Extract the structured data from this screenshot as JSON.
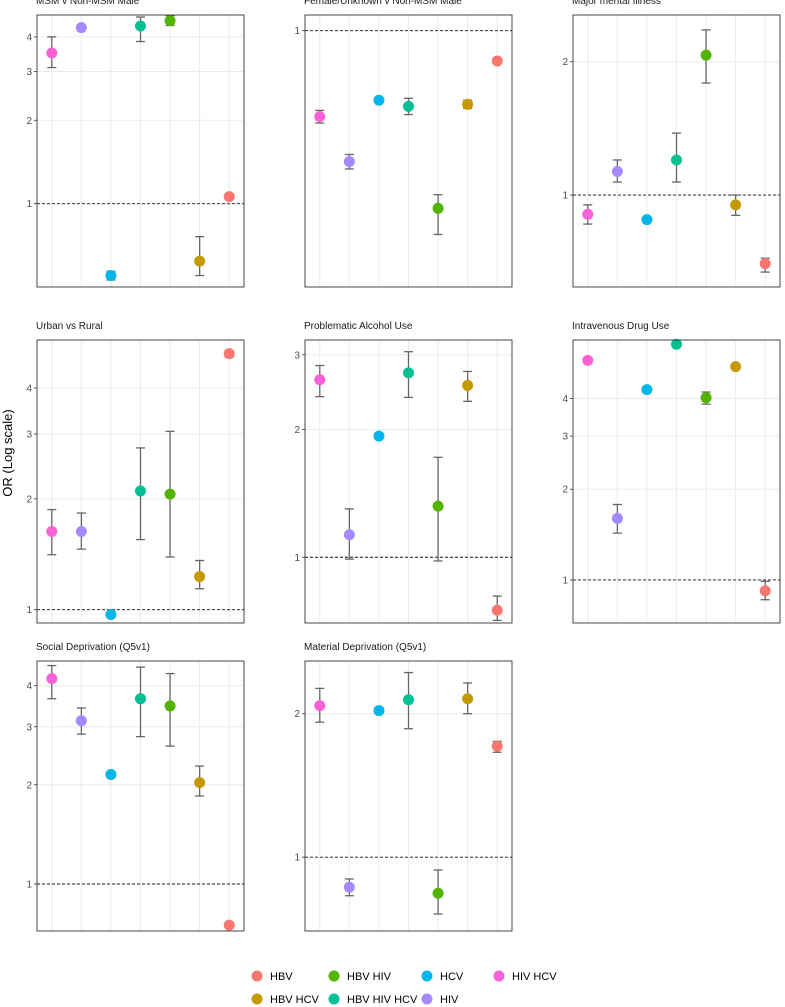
{
  "chart_data": {
    "type": "scatter",
    "y_axis_label": "OR (Log scale)",
    "series_order": [
      "HIV HCV",
      "HIV",
      "HCV",
      "HBV HIV HCV",
      "HBV HIV",
      "HBV HCV",
      "HBV"
    ],
    "colors": {
      "HBV": "#F8766D",
      "HBV HCV": "#C49A00",
      "HBV HIV": "#53B400",
      "HBV HIV HCV": "#00C094",
      "HCV": "#00B6EB",
      "HIV": "#A58AFF",
      "HIV HCV": "#FB61D7"
    },
    "legend": [
      [
        "HBV",
        "HBV HIV",
        "HCV",
        "HIV HCV"
      ],
      [
        "HBV HCV",
        "HBV HIV HCV",
        "HIV"
      ]
    ],
    "panels": [
      {
        "title": "MSM v Non-MSM Male",
        "ylim": [
          0.5,
          4.8
        ],
        "ticks": [
          1,
          2,
          3,
          4
        ],
        "points": [
          {
            "series": "HIV HCV",
            "or": 3.5,
            "lo": 3.1,
            "hi": 4.0
          },
          {
            "series": "HIV",
            "or": 4.32,
            "lo": 4.22,
            "hi": 4.42
          },
          {
            "series": "HCV",
            "or": 0.55,
            "lo": 0.53,
            "hi": 0.57
          },
          {
            "series": "HBV HIV HCV",
            "or": 4.38,
            "lo": 3.85,
            "hi": 4.72
          },
          {
            "series": "HBV HIV",
            "or": 4.58,
            "lo": 4.4,
            "hi": 4.78
          },
          {
            "series": "HBV HCV",
            "or": 0.62,
            "lo": 0.55,
            "hi": 0.76
          },
          {
            "series": "HBV",
            "or": 1.06,
            "lo": 1.04,
            "hi": 1.08
          }
        ]
      },
      {
        "title": "Female/Unknown v Non-MSM Male",
        "ylim": [
          0.45,
          1.05
        ],
        "ticks": [
          1
        ],
        "points": [
          {
            "series": "HIV HCV",
            "or": 0.765,
            "lo": 0.75,
            "hi": 0.78
          },
          {
            "series": "HIV",
            "or": 0.665,
            "lo": 0.65,
            "hi": 0.68
          },
          {
            "series": "HCV",
            "or": 0.805,
            "lo": 0.8,
            "hi": 0.81
          },
          {
            "series": "HBV HIV HCV",
            "or": 0.79,
            "lo": 0.77,
            "hi": 0.81
          },
          {
            "series": "HBV HIV",
            "or": 0.575,
            "lo": 0.53,
            "hi": 0.6
          },
          {
            "series": "HBV HCV",
            "or": 0.795,
            "lo": 0.785,
            "hi": 0.805
          },
          {
            "series": "HBV",
            "or": 0.91,
            "lo": 0.905,
            "hi": 0.915
          }
        ]
      },
      {
        "title": "Major mental Illness",
        "ylim": [
          0.62,
          2.55
        ],
        "ticks": [
          1,
          2
        ],
        "points": [
          {
            "series": "HIV HCV",
            "or": 0.905,
            "lo": 0.86,
            "hi": 0.95
          },
          {
            "series": "HIV",
            "or": 1.13,
            "lo": 1.07,
            "hi": 1.2
          },
          {
            "series": "HCV",
            "or": 0.88,
            "lo": 0.87,
            "hi": 0.89
          },
          {
            "series": "HBV HIV HCV",
            "or": 1.2,
            "lo": 1.07,
            "hi": 1.38
          },
          {
            "series": "HBV HIV",
            "or": 2.07,
            "lo": 1.79,
            "hi": 2.36
          },
          {
            "series": "HBV HCV",
            "or": 0.95,
            "lo": 0.9,
            "hi": 1.0
          },
          {
            "series": "HBV",
            "or": 0.7,
            "lo": 0.67,
            "hi": 0.72
          }
        ]
      },
      {
        "title": "Urban vs Rural",
        "ylim": [
          0.92,
          5.4
        ],
        "ticks": [
          1,
          2,
          3,
          4
        ],
        "points": [
          {
            "series": "HIV HCV",
            "or": 1.63,
            "lo": 1.41,
            "hi": 1.87
          },
          {
            "series": "HIV",
            "or": 1.63,
            "lo": 1.46,
            "hi": 1.83
          },
          {
            "series": "HCV",
            "or": 0.97,
            "lo": 0.96,
            "hi": 0.98
          },
          {
            "series": "HBV HIV HCV",
            "or": 2.1,
            "lo": 1.55,
            "hi": 2.75
          },
          {
            "series": "HBV HIV",
            "or": 2.06,
            "lo": 1.39,
            "hi": 3.05
          },
          {
            "series": "HBV HCV",
            "or": 1.23,
            "lo": 1.14,
            "hi": 1.36
          },
          {
            "series": "HBV",
            "or": 4.96,
            "lo": 4.85,
            "hi": 5.05
          }
        ]
      },
      {
        "title": "Problematic Alcohol Use",
        "ylim": [
          0.7,
          3.25
        ],
        "ticks": [
          1,
          2,
          3
        ],
        "points": [
          {
            "series": "HIV HCV",
            "or": 2.62,
            "lo": 2.39,
            "hi": 2.83
          },
          {
            "series": "HIV",
            "or": 1.13,
            "lo": 0.99,
            "hi": 1.3
          },
          {
            "series": "HCV",
            "or": 1.93,
            "lo": 1.91,
            "hi": 1.95
          },
          {
            "series": "HBV HIV HCV",
            "or": 2.72,
            "lo": 2.38,
            "hi": 3.05
          },
          {
            "series": "HBV HIV",
            "or": 1.32,
            "lo": 0.98,
            "hi": 1.72
          },
          {
            "series": "HBV HCV",
            "or": 2.54,
            "lo": 2.33,
            "hi": 2.74
          },
          {
            "series": "HBV",
            "or": 0.75,
            "lo": 0.71,
            "hi": 0.81
          }
        ]
      },
      {
        "title": "Intravenous Drug Use",
        "ylim": [
          0.72,
          6.25
        ],
        "ticks": [
          1,
          2,
          3,
          4
        ],
        "points": [
          {
            "series": "HIV HCV",
            "or": 5.35,
            "lo": 5.31,
            "hi": 5.39
          },
          {
            "series": "HIV",
            "or": 1.6,
            "lo": 1.43,
            "hi": 1.78
          },
          {
            "series": "HCV",
            "or": 4.28,
            "lo": 4.26,
            "hi": 4.3
          },
          {
            "series": "HBV HIV HCV",
            "or": 6.05,
            "lo": 5.96,
            "hi": 6.14
          },
          {
            "series": "HBV HIV",
            "or": 4.02,
            "lo": 3.83,
            "hi": 4.2
          },
          {
            "series": "HBV HCV",
            "or": 5.1,
            "lo": 5.08,
            "hi": 5.12
          },
          {
            "series": "HBV",
            "or": 0.92,
            "lo": 0.86,
            "hi": 0.99
          }
        ]
      },
      {
        "title": "Social Deprivation (Q5v1)",
        "ylim": [
          0.72,
          4.75
        ],
        "ticks": [
          1,
          2,
          3,
          4
        ],
        "points": [
          {
            "series": "HIV HCV",
            "or": 4.2,
            "lo": 3.65,
            "hi": 4.6
          },
          {
            "series": "HIV",
            "or": 3.13,
            "lo": 2.85,
            "hi": 3.42
          },
          {
            "series": "HCV",
            "or": 2.15,
            "lo": 2.13,
            "hi": 2.17
          },
          {
            "series": "HBV HIV HCV",
            "or": 3.65,
            "lo": 2.8,
            "hi": 4.55
          },
          {
            "series": "HBV HIV",
            "or": 3.47,
            "lo": 2.62,
            "hi": 4.35
          },
          {
            "series": "HBV HCV",
            "or": 2.03,
            "lo": 1.85,
            "hi": 2.28
          },
          {
            "series": "HBV",
            "or": 0.75,
            "lo": 0.74,
            "hi": 0.76
          }
        ]
      },
      {
        "title": "Material Deprivation (Q5v1)",
        "ylim": [
          0.7,
          2.58
        ],
        "ticks": [
          1,
          2
        ],
        "points": [
          {
            "series": "HIV HCV",
            "or": 2.08,
            "lo": 1.92,
            "hi": 2.26
          },
          {
            "series": "HIV",
            "or": 0.865,
            "lo": 0.83,
            "hi": 0.9
          },
          {
            "series": "HCV",
            "or": 2.03,
            "lo": 2.0,
            "hi": 2.06
          },
          {
            "series": "HBV HIV HCV",
            "or": 2.14,
            "lo": 1.86,
            "hi": 2.44
          },
          {
            "series": "HBV HIV",
            "or": 0.84,
            "lo": 0.76,
            "hi": 0.94
          },
          {
            "series": "HBV HCV",
            "or": 2.15,
            "lo": 2.0,
            "hi": 2.32
          },
          {
            "series": "HBV",
            "or": 1.71,
            "lo": 1.66,
            "hi": 1.75
          }
        ]
      }
    ]
  }
}
